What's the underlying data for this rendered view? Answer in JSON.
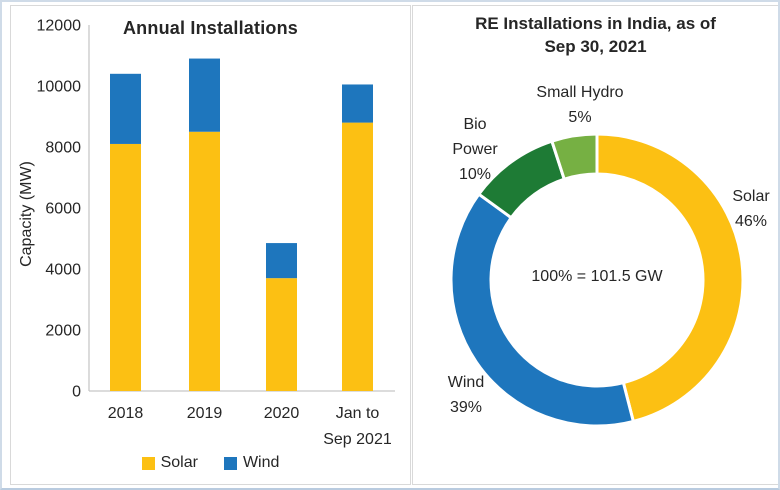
{
  "left_chart": {
    "title": "Annual Installations",
    "ylabel": "Capacity (MW)",
    "legend": [
      {
        "label": "Solar",
        "color": "#FCC013"
      },
      {
        "label": "Wind",
        "color": "#1E76BD"
      }
    ]
  },
  "right_chart": {
    "title_line1": "RE Installations in India, as of",
    "title_line2": "Sep 30, 2021",
    "center_text": "100% = 101.5 GW"
  },
  "colors": {
    "solar": "#FCC013",
    "wind": "#1E76BD",
    "bio_power": "#1E7B35",
    "small_hydro": "#76B043",
    "axis_line": "#c8c8c8",
    "text": "#262626"
  },
  "chart_data": [
    {
      "type": "bar",
      "stacked": true,
      "title": "Annual Installations",
      "categories": [
        "2018",
        "2019",
        "2020",
        "Jan to\nSep 2021"
      ],
      "series": [
        {
          "name": "Solar",
          "color": "#FCC013",
          "values": [
            8100,
            8500,
            3700,
            8800
          ]
        },
        {
          "name": "Wind",
          "color": "#1E76BD",
          "values": [
            2300,
            2400,
            1150,
            1250
          ]
        }
      ],
      "totals": [
        10400,
        10900,
        4850,
        10050
      ],
      "xlabel": "",
      "ylabel": "Capacity (MW)",
      "ylim": [
        0,
        12000
      ],
      "ytick_step": 2000,
      "gridlines": false,
      "legend_position": "bottom"
    },
    {
      "type": "pie",
      "donut": true,
      "title": "RE Installations in India, as of Sep 30, 2021",
      "labels": [
        "Solar",
        "Wind",
        "Bio Power",
        "Small Hydro"
      ],
      "values": [
        46,
        39,
        10,
        5
      ],
      "unit": "%",
      "colors": [
        "#FCC013",
        "#1E76BD",
        "#1E7B35",
        "#76B043"
      ],
      "center_text": "100% = 101.5 GW",
      "start_angle": "top",
      "direction": "clockwise",
      "legend_position": "none"
    }
  ]
}
